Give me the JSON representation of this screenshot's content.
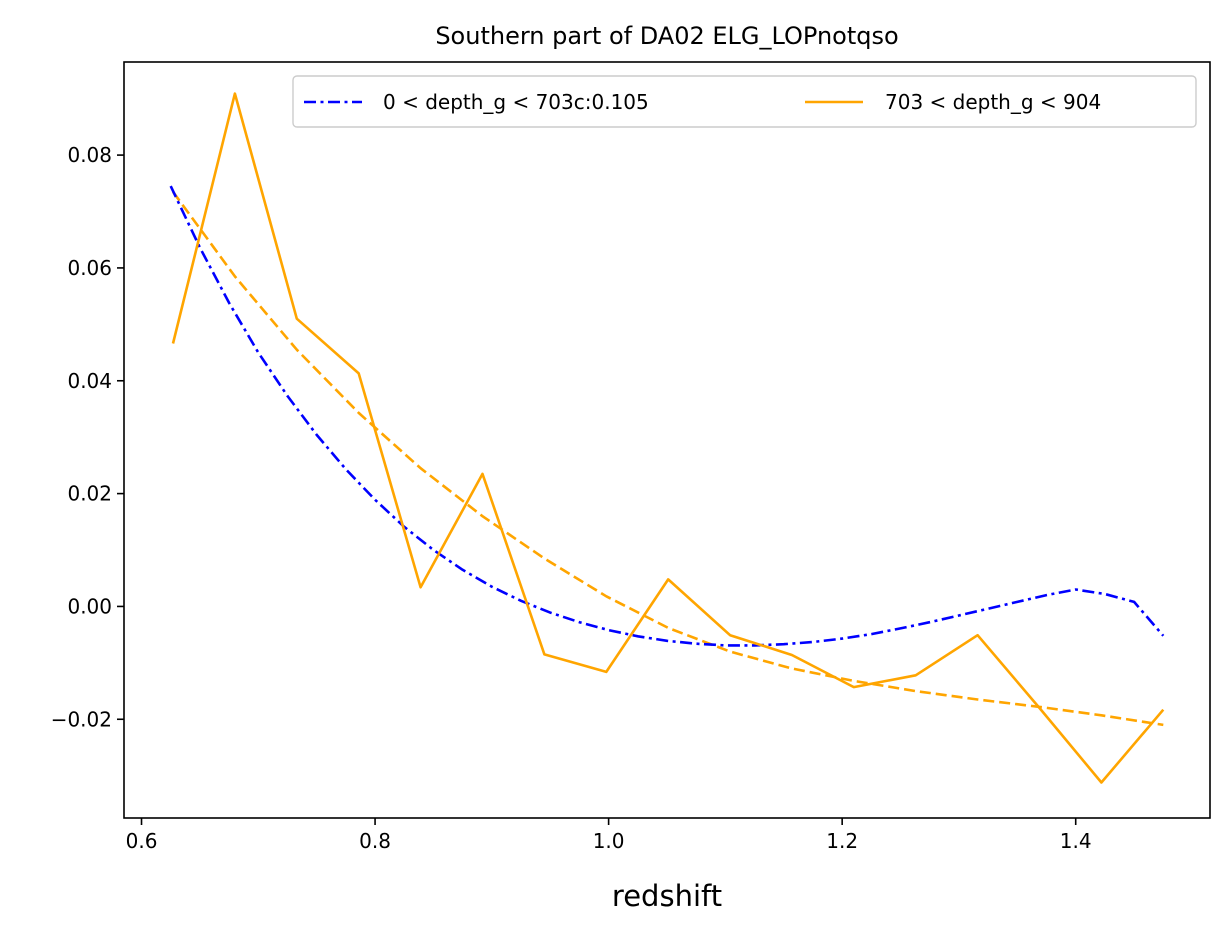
{
  "chart_data": {
    "type": "line",
    "title": "Southern part of DA02 ELG_LOPnotqso",
    "xlabel": "redshift",
    "ylabel": "",
    "xlim": [
      0.585,
      1.515
    ],
    "ylim": [
      -0.0375,
      0.0965
    ],
    "xticks": [
      0.6,
      0.8,
      1.0,
      1.2,
      1.4
    ],
    "xtick_labels": [
      "0.6",
      "0.8",
      "1.0",
      "1.2",
      "1.4"
    ],
    "yticks": [
      -0.02,
      0.0,
      0.02,
      0.04,
      0.06,
      0.08
    ],
    "ytick_labels": [
      "−0.02",
      "0.00",
      "0.02",
      "0.04",
      "0.06",
      "0.08"
    ],
    "grid": false,
    "legend": {
      "placement": "upper-right",
      "columns": 2
    },
    "series": [
      {
        "name": "0 < depth_g < 703c:0.105",
        "color": "#0000ff",
        "style": "dashdot",
        "in_legend": true,
        "x": [
          0.625,
          0.65,
          0.675,
          0.7,
          0.725,
          0.75,
          0.775,
          0.8,
          0.825,
          0.85,
          0.875,
          0.9,
          0.925,
          0.95,
          0.975,
          1.0,
          1.025,
          1.05,
          1.075,
          1.1,
          1.125,
          1.15,
          1.175,
          1.2,
          1.225,
          1.25,
          1.275,
          1.3,
          1.325,
          1.35,
          1.375,
          1.4,
          1.425,
          1.45,
          1.475
        ],
        "y": [
          0.0745,
          0.0636,
          0.0538,
          0.045,
          0.0373,
          0.0304,
          0.0243,
          0.0189,
          0.0141,
          0.01,
          0.0065,
          0.0035,
          0.001,
          -0.0011,
          -0.0028,
          -0.0042,
          -0.0053,
          -0.0061,
          -0.0066,
          -0.0069,
          -0.0069,
          -0.0067,
          -0.0063,
          -0.0057,
          -0.0049,
          -0.0039,
          -0.0028,
          -0.0016,
          -0.0004,
          0.0008,
          0.002,
          0.003,
          0.0022,
          0.0008,
          -0.0052
        ]
      },
      {
        "name": "703 < depth_g < 904",
        "color": "#ffa500",
        "style": "solid",
        "in_legend": true,
        "x": [
          0.627,
          0.68,
          0.733,
          0.786,
          0.839,
          0.892,
          0.945,
          0.998,
          1.051,
          1.104,
          1.157,
          1.21,
          1.263,
          1.316,
          1.369,
          1.422,
          1.475
        ],
        "y": [
          0.0466,
          0.0909,
          0.051,
          0.0413,
          0.0034,
          0.0235,
          -0.0085,
          -0.0116,
          0.0048,
          -0.0051,
          -0.0086,
          -0.0143,
          -0.0122,
          -0.0051,
          -0.018,
          -0.0312,
          -0.0183
        ]
      },
      {
        "name": "",
        "color": "#ffa500",
        "style": "dashed",
        "in_legend": false,
        "x": [
          0.627,
          0.68,
          0.733,
          0.786,
          0.839,
          0.892,
          0.945,
          0.998,
          1.051,
          1.104,
          1.157,
          1.21,
          1.263,
          1.316,
          1.369,
          1.422,
          1.475
        ],
        "y": [
          0.0735,
          0.0585,
          0.0455,
          0.0343,
          0.0245,
          0.016,
          0.0085,
          0.0018,
          -0.0038,
          -0.008,
          -0.011,
          -0.0132,
          -0.015,
          -0.0165,
          -0.0178,
          -0.0193,
          -0.021
        ]
      }
    ]
  }
}
